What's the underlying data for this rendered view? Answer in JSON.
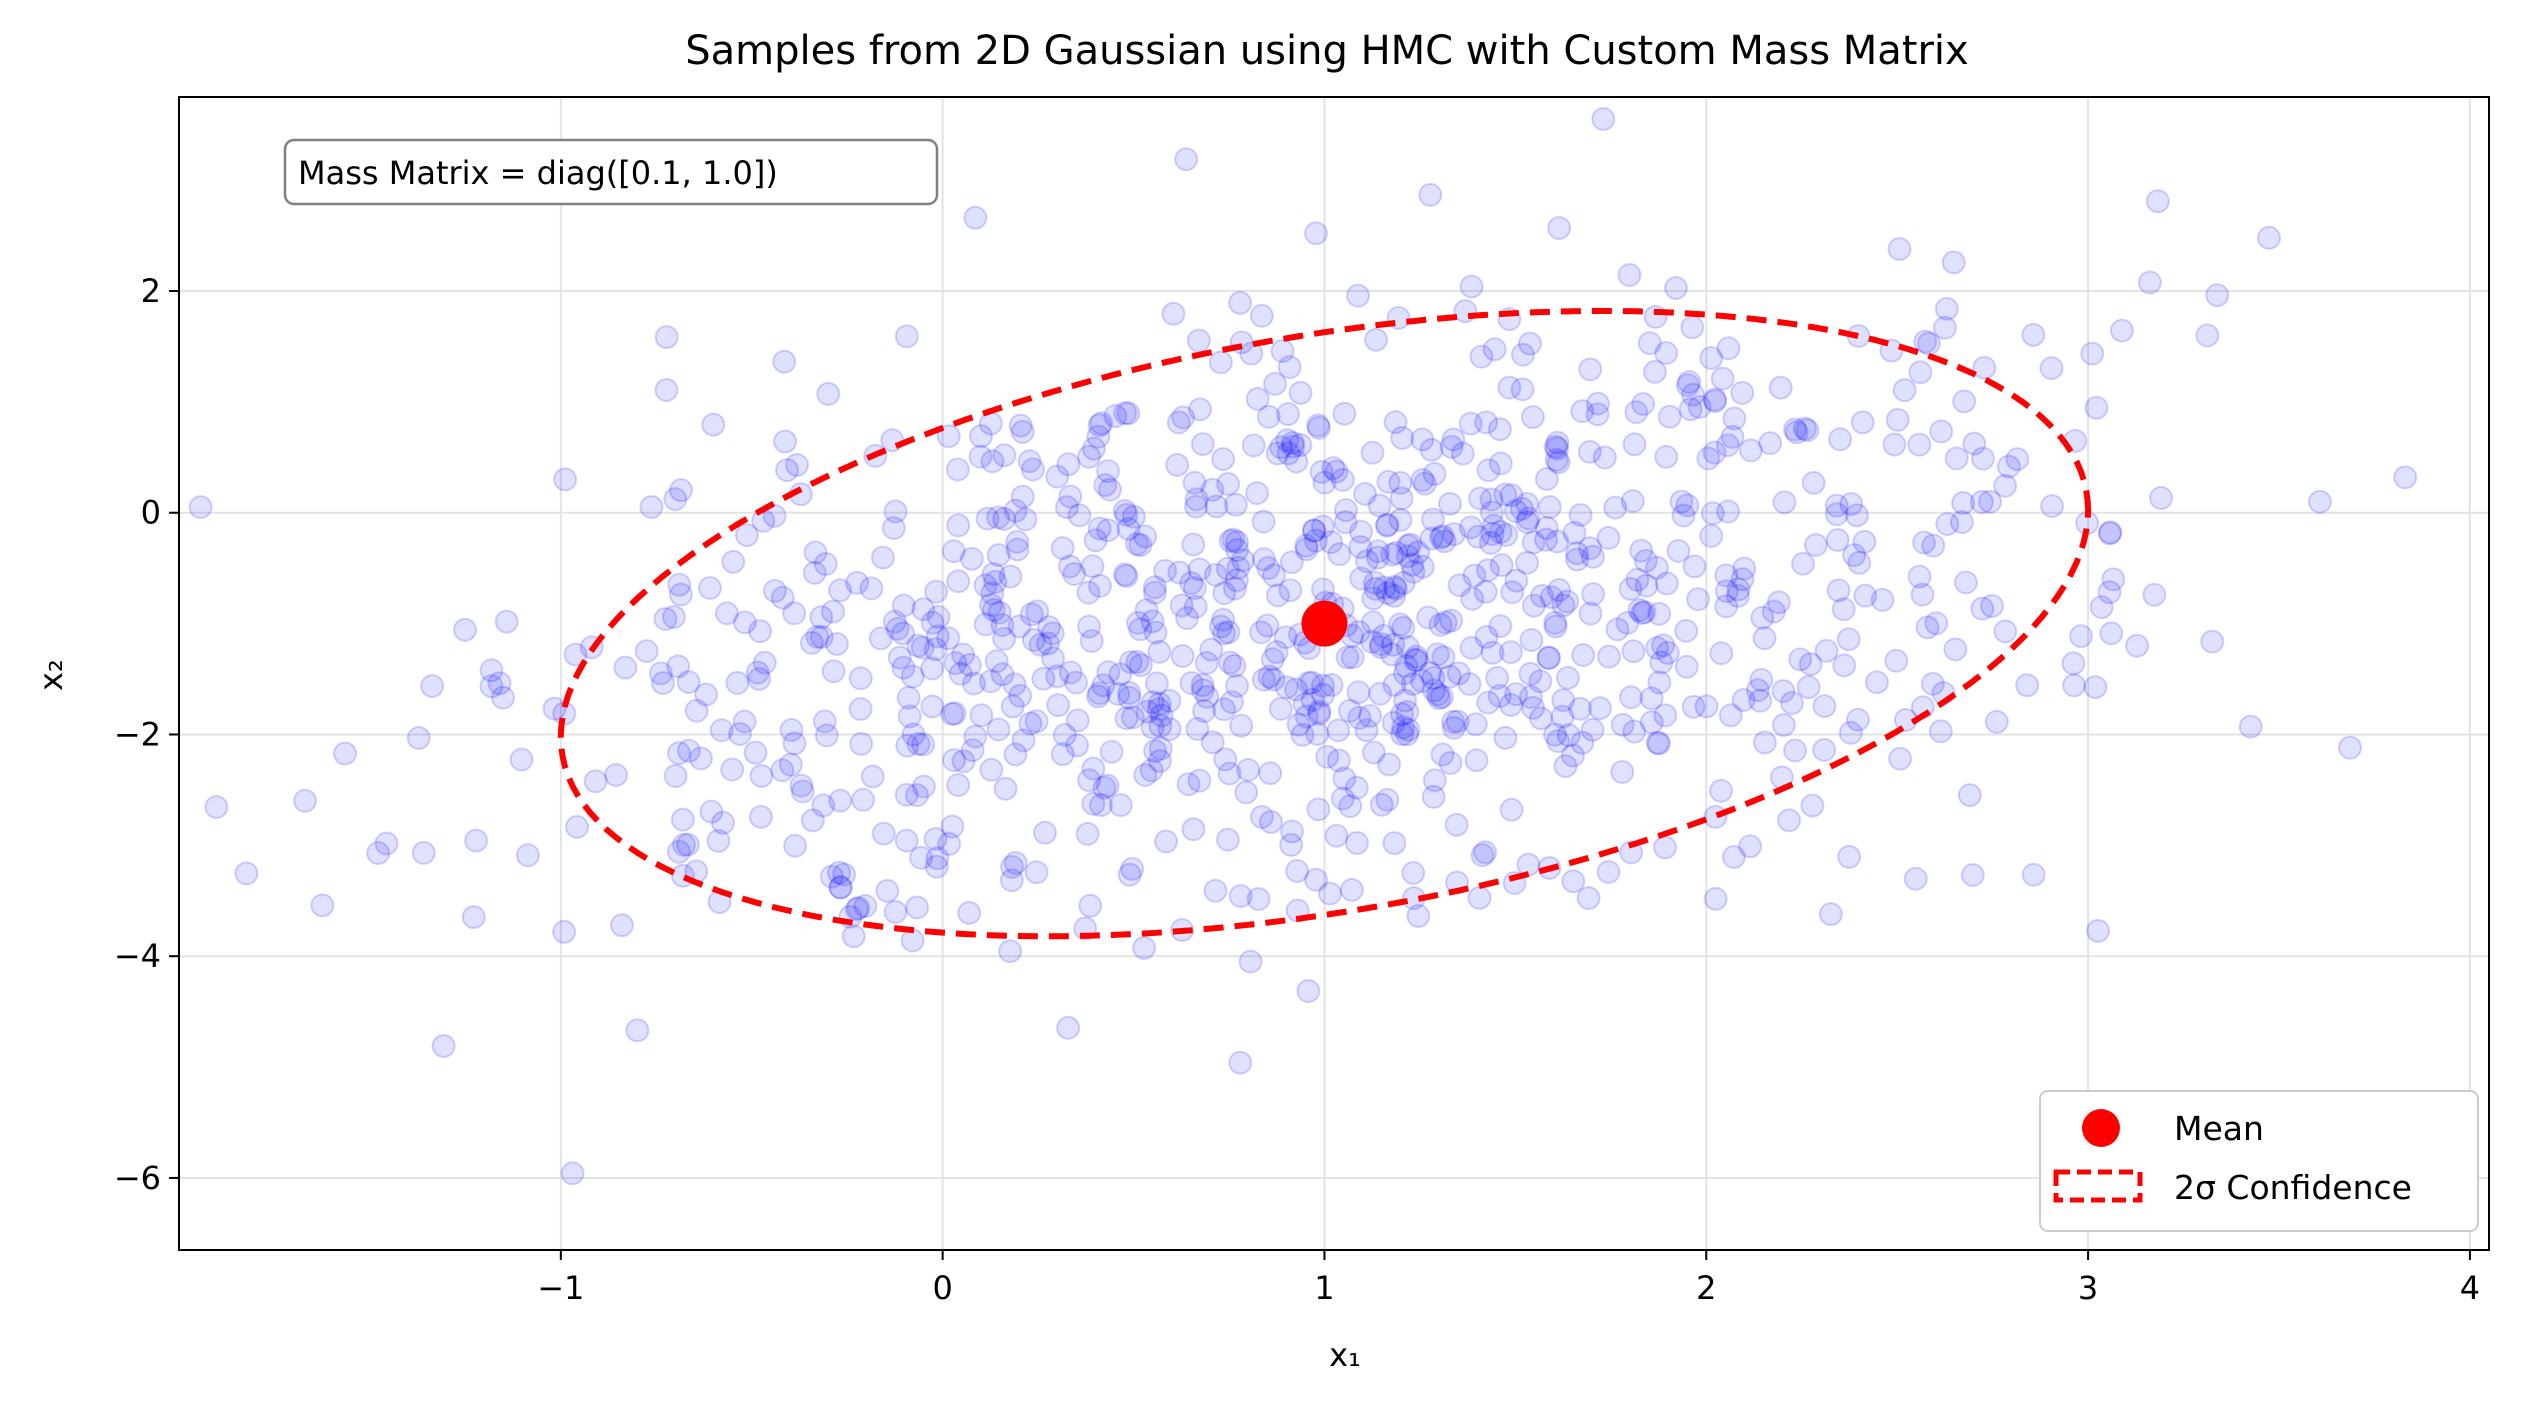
{
  "chart_data": {
    "type": "scatter",
    "title": "Samples from 2D Gaussian using HMC with Custom Mass Matrix",
    "xlabel": "x₁",
    "ylabel": "x₂",
    "xlim": [
      -2.0,
      4.05
    ],
    "ylim": [
      -6.65,
      3.75
    ],
    "xticks": [
      -1,
      0,
      1,
      2,
      3,
      4
    ],
    "yticks": [
      -6,
      -4,
      -2,
      0,
      2
    ],
    "xtick_labels": [
      "−1",
      "0",
      "1",
      "2",
      "3",
      "4"
    ],
    "ytick_labels": [
      "−6",
      "−4",
      "−2",
      "0",
      "2"
    ],
    "grid": true,
    "annotation": "Mass Matrix = diag([0.1, 1.0])",
    "legend_position": "lower-right",
    "sample_color": "#0000ff",
    "sample_alpha": 0.12,
    "sample_count": 1000,
    "mean": {
      "x": 1.0,
      "y": -1.0,
      "label": "Mean",
      "color": "#ff0000"
    },
    "confidence_ellipse": {
      "label": "2σ Confidence",
      "center_x": 1.0,
      "center_y": -1.0,
      "semi_axis_x": 2.0,
      "semi_axis_y": 2.82,
      "cov": [
        [
          1.0,
          0.5
        ],
        [
          0.5,
          2.0
        ]
      ],
      "color": "#ff0000",
      "linestyle": "dashed"
    }
  }
}
